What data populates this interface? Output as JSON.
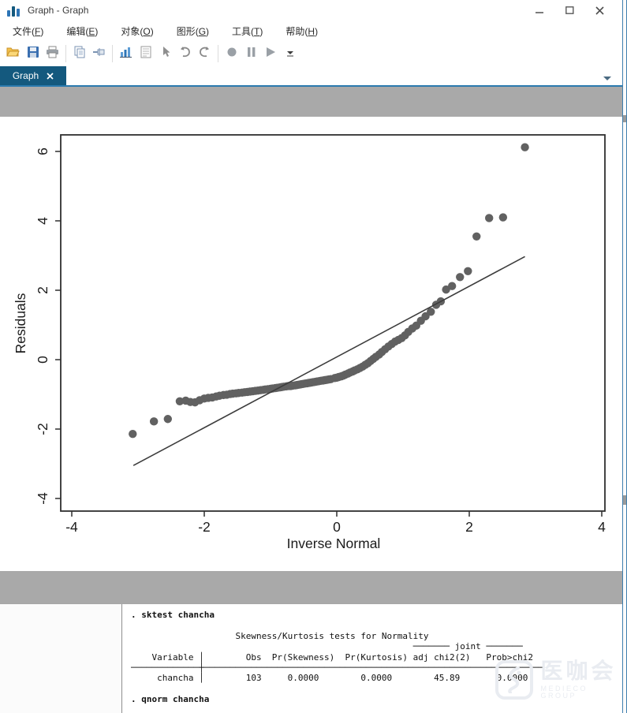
{
  "window": {
    "title": "Graph - Graph"
  },
  "menu": {
    "items": [
      {
        "label": "文件",
        "key": "F"
      },
      {
        "label": "编辑",
        "key": "E"
      },
      {
        "label": "对象",
        "key": "O"
      },
      {
        "label": "图形",
        "key": "G"
      },
      {
        "label": "工具",
        "key": "T"
      },
      {
        "label": "帮助",
        "key": "H"
      }
    ]
  },
  "toolbar": {
    "groups": [
      [
        "open-icon",
        "save-icon",
        "print-icon"
      ],
      [
        "copy-icon",
        "rename-icon"
      ],
      [
        "new-graph-icon",
        "log-icon",
        "pointer-icon",
        "undo-icon",
        "redo-icon"
      ],
      [
        "record-icon",
        "pause-icon",
        "play-icon",
        "more-icon"
      ]
    ]
  },
  "tabs": {
    "active": "Graph"
  },
  "colors": {
    "accent": "#2a7aae",
    "tab": "#14597e",
    "band": "#a9a9a9",
    "point": "#616161",
    "ref_line": "#3c3c3c",
    "axis": "#2f2f2f"
  },
  "chart_data": {
    "type": "scatter",
    "title": "",
    "xlabel": "Inverse Normal",
    "ylabel": "Residuals",
    "x_ticks": [
      -4,
      -2,
      0,
      2,
      4
    ],
    "y_ticks": [
      6,
      4,
      2,
      0,
      -2,
      -4
    ],
    "xlim": [
      -4.17,
      4.05
    ],
    "ylim": [
      -4.36,
      6.48
    ],
    "grid": false,
    "legend": false,
    "reference_line": {
      "x1": -3.07,
      "y1": -3.05,
      "x2": 2.84,
      "y2": 2.97
    },
    "points": [
      [
        -3.08,
        -2.14
      ],
      [
        -2.76,
        -1.78
      ],
      [
        -2.55,
        -1.71
      ],
      [
        -2.37,
        -1.2
      ],
      [
        -2.28,
        -1.18
      ],
      [
        -2.21,
        -1.22
      ],
      [
        -2.14,
        -1.23
      ],
      [
        -2.07,
        -1.17
      ],
      [
        -2.0,
        -1.12
      ],
      [
        -1.94,
        -1.1
      ],
      [
        -1.88,
        -1.09
      ],
      [
        -1.82,
        -1.06
      ],
      [
        -1.77,
        -1.04
      ],
      [
        -1.71,
        -1.02
      ],
      [
        -1.66,
        -1.01
      ],
      [
        -1.61,
        -0.99
      ],
      [
        -1.57,
        -0.98
      ],
      [
        -1.52,
        -0.97
      ],
      [
        -1.48,
        -0.96
      ],
      [
        -1.43,
        -0.95
      ],
      [
        -1.39,
        -0.94
      ],
      [
        -1.35,
        -0.93
      ],
      [
        -1.31,
        -0.92
      ],
      [
        -1.27,
        -0.91
      ],
      [
        -1.23,
        -0.9
      ],
      [
        -1.19,
        -0.89
      ],
      [
        -1.15,
        -0.88
      ],
      [
        -1.11,
        -0.87
      ],
      [
        -1.08,
        -0.86
      ],
      [
        -1.04,
        -0.85
      ],
      [
        -1.0,
        -0.84
      ],
      [
        -0.97,
        -0.83
      ],
      [
        -0.93,
        -0.82
      ],
      [
        -0.9,
        -0.81
      ],
      [
        -0.86,
        -0.8
      ],
      [
        -0.83,
        -0.79
      ],
      [
        -0.8,
        -0.78
      ],
      [
        -0.76,
        -0.77
      ],
      [
        -0.73,
        -0.76
      ],
      [
        -0.7,
        -0.76
      ],
      [
        -0.67,
        -0.75
      ],
      [
        -0.63,
        -0.74
      ],
      [
        -0.6,
        -0.73
      ],
      [
        -0.57,
        -0.72
      ],
      [
        -0.54,
        -0.71
      ],
      [
        -0.51,
        -0.7
      ],
      [
        -0.48,
        -0.69
      ],
      [
        -0.45,
        -0.68
      ],
      [
        -0.42,
        -0.67
      ],
      [
        -0.39,
        -0.66
      ],
      [
        -0.36,
        -0.65
      ],
      [
        -0.33,
        -0.64
      ],
      [
        -0.3,
        -0.63
      ],
      [
        -0.27,
        -0.62
      ],
      [
        -0.24,
        -0.61
      ],
      [
        -0.21,
        -0.6
      ],
      [
        -0.18,
        -0.59
      ],
      [
        -0.15,
        -0.58
      ],
      [
        -0.12,
        -0.57
      ],
      [
        -0.09,
        -0.56
      ],
      [
        -0.03,
        -0.53
      ],
      [
        0.0,
        -0.52
      ],
      [
        0.03,
        -0.5
      ],
      [
        0.07,
        -0.48
      ],
      [
        0.1,
        -0.46
      ],
      [
        0.13,
        -0.43
      ],
      [
        0.17,
        -0.4
      ],
      [
        0.2,
        -0.37
      ],
      [
        0.24,
        -0.34
      ],
      [
        0.27,
        -0.31
      ],
      [
        0.31,
        -0.28
      ],
      [
        0.35,
        -0.24
      ],
      [
        0.39,
        -0.2
      ],
      [
        0.43,
        -0.15
      ],
      [
        0.47,
        -0.1
      ],
      [
        0.51,
        -0.04
      ],
      [
        0.55,
        0.02
      ],
      [
        0.59,
        0.08
      ],
      [
        0.64,
        0.15
      ],
      [
        0.68,
        0.22
      ],
      [
        0.73,
        0.3
      ],
      [
        0.78,
        0.38
      ],
      [
        0.83,
        0.45
      ],
      [
        0.88,
        0.52
      ],
      [
        0.93,
        0.57
      ],
      [
        0.98,
        0.62
      ],
      [
        1.03,
        0.7
      ],
      [
        1.08,
        0.8
      ],
      [
        1.14,
        0.9
      ],
      [
        1.2,
        0.98
      ],
      [
        1.27,
        1.12
      ],
      [
        1.34,
        1.25
      ],
      [
        1.42,
        1.38
      ],
      [
        1.5,
        1.58
      ],
      [
        1.57,
        1.68
      ],
      [
        1.65,
        2.02
      ],
      [
        1.74,
        2.12
      ],
      [
        1.86,
        2.38
      ],
      [
        1.98,
        2.55
      ],
      [
        2.11,
        3.55
      ],
      [
        2.3,
        4.08
      ],
      [
        2.51,
        4.1
      ],
      [
        2.84,
        6.12
      ]
    ]
  },
  "results": {
    "lines": [
      {
        "text": ". sktest chancha",
        "bold": true
      },
      {
        "text": "",
        "bold": false
      },
      {
        "text": "                    Skewness/Kurtosis tests for Normality",
        "bold": false
      },
      {
        "text": "                                                      ─────── joint ───────",
        "bold": false
      },
      {
        "text": "    Variable │        Obs  Pr(Skewness)  Pr(Kurtosis) adj chi2(2)   Prob>chi2",
        "bold": false
      },
      {
        "text": "─────────────┼─────────────────────────────────────────────────────────────────",
        "bold": false
      },
      {
        "text": "     chancha │        103     0.0000        0.0000        45.89       0.0000",
        "bold": false
      },
      {
        "text": "",
        "bold": false
      },
      {
        "text": ". qnorm chancha",
        "bold": true
      }
    ]
  },
  "watermark": {
    "cn": "医咖会",
    "en": "MEDIECO GROUP"
  }
}
